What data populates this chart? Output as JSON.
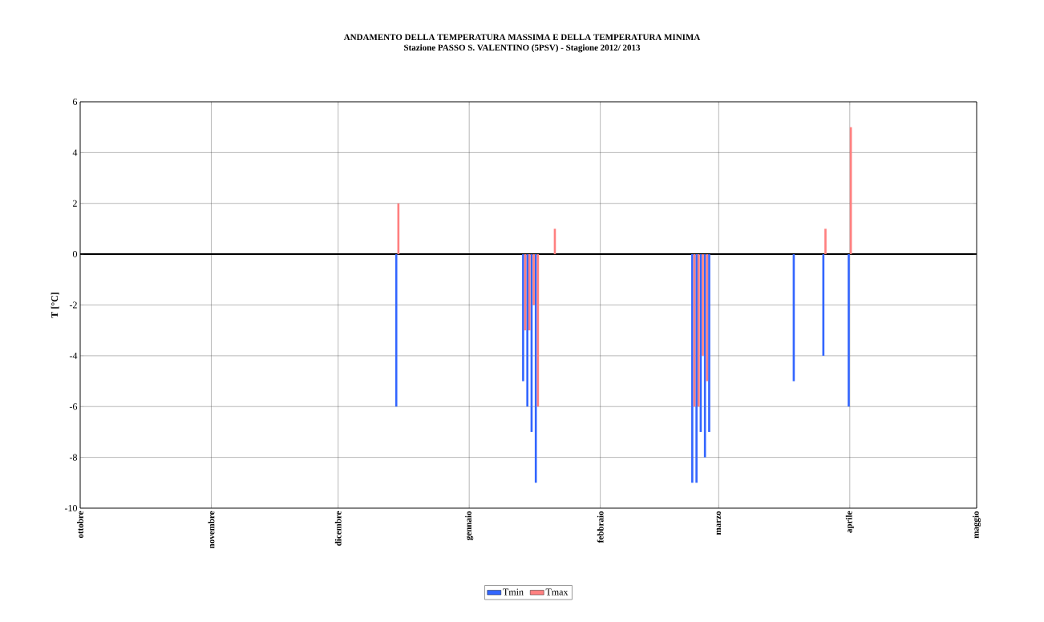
{
  "chart_data": {
    "type": "bar",
    "title": "ANDAMENTO DELLA TEMPERATURA MASSIMA  E DELLA TEMPERATURA MINIMA",
    "subtitle": "Stazione PASSO S. VALENTINO (5PSV) - Stagione  2012/ 2013",
    "ylabel": "T [°C]",
    "x": [
      "2012-12-15",
      "2013-01-14",
      "2013-01-15",
      "2013-01-16",
      "2013-01-17",
      "2013-01-21",
      "2013-02-23",
      "2013-02-24",
      "2013-02-25",
      "2013-02-26",
      "2013-02-27",
      "2013-03-19",
      "2013-03-26",
      "2013-04-01"
    ],
    "series": [
      {
        "name": "Tmin",
        "color": "#3366ff",
        "values": [
          -6,
          -5,
          -6,
          -7,
          -9,
          null,
          -9,
          -9,
          -7,
          -8,
          -7,
          -5,
          -4,
          -6
        ]
      },
      {
        "name": "Tmax",
        "color": "#ff8080",
        "values": [
          2,
          -3,
          -3,
          -2,
          -6,
          1,
          -6,
          -6,
          -4,
          -5,
          null,
          null,
          1,
          5
        ]
      }
    ],
    "xlim": [
      "2012-10-01",
      "2013-05-01"
    ],
    "xticks": [
      {
        "value": "2012-10-01",
        "label": "ottobre"
      },
      {
        "value": "2012-11-01",
        "label": "novembre"
      },
      {
        "value": "2012-12-01",
        "label": "dicembre"
      },
      {
        "value": "2013-01-01",
        "label": "gennaio"
      },
      {
        "value": "2013-02-01",
        "label": "febbraio"
      },
      {
        "value": "2013-03-01",
        "label": "marzo"
      },
      {
        "value": "2013-04-01",
        "label": "aprile"
      },
      {
        "value": "2013-05-01",
        "label": "maggio"
      }
    ],
    "ylim": [
      -10,
      6
    ],
    "yticks": [
      -10,
      -8,
      -6,
      -4,
      -2,
      0,
      2,
      4,
      6
    ],
    "grid": true,
    "legend": "bottom"
  }
}
